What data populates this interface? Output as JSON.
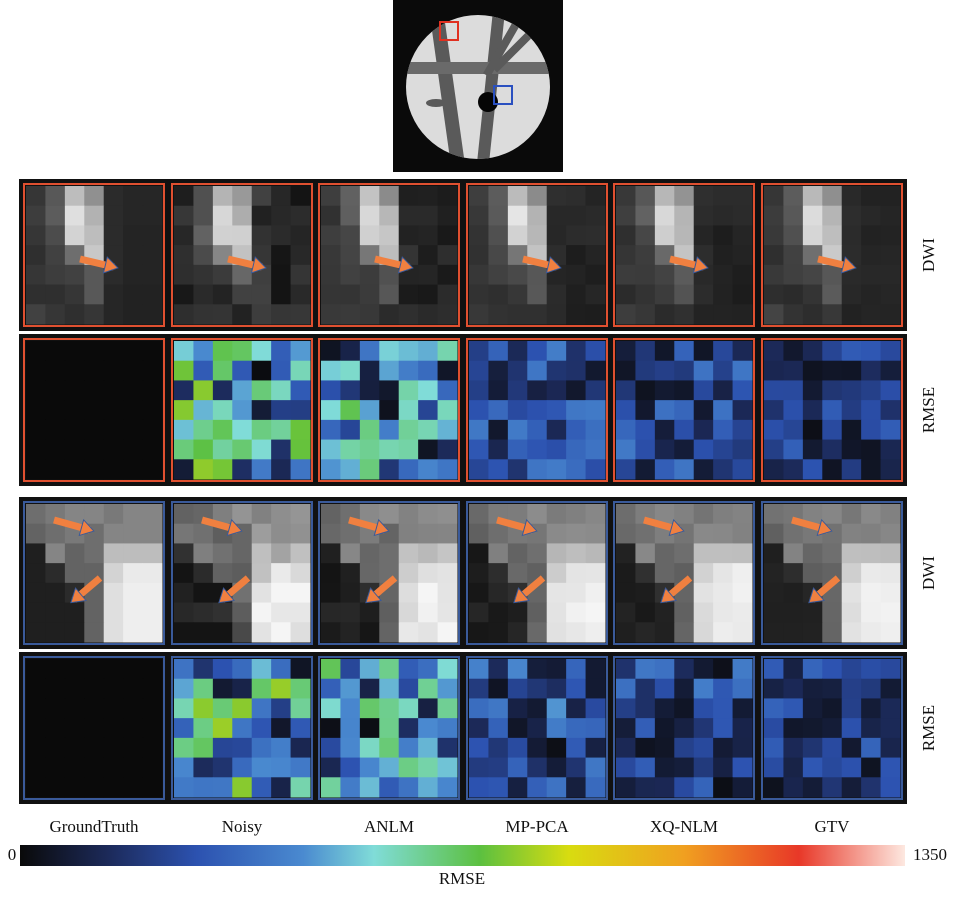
{
  "figure": {
    "columns": [
      "GroundTruth",
      "Noisy",
      "ANLM",
      "MP-PCA",
      "XQ-NLM",
      "GTV"
    ],
    "row_labels": [
      "DWI",
      "RMSE",
      "DWI",
      "RMSE"
    ],
    "colorbar": {
      "min": 0,
      "max": 1350,
      "label": "RMSE"
    }
  }
}
